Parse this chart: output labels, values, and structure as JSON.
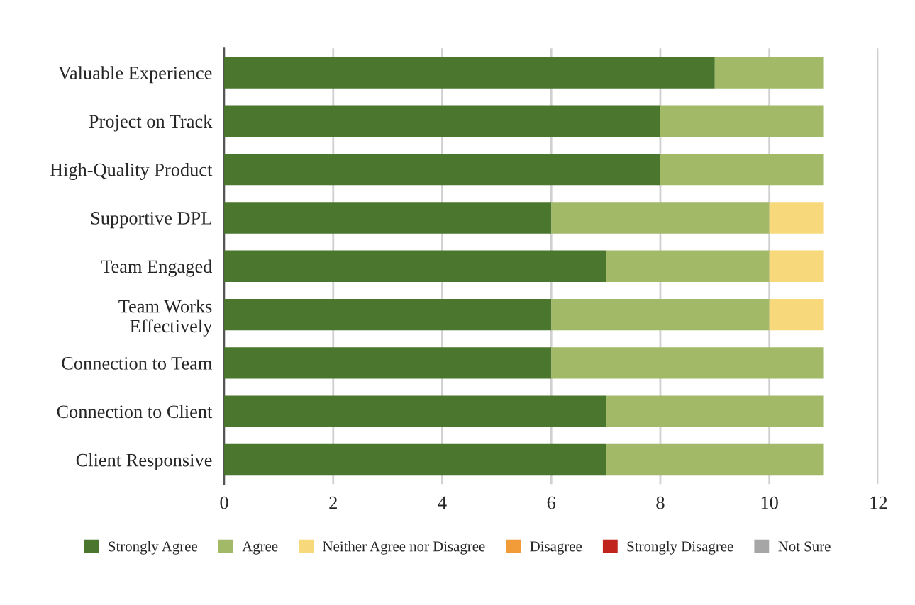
{
  "chart_data": {
    "type": "bar",
    "orientation": "horizontal",
    "stacked": true,
    "categories": [
      "Valuable Experience",
      "Project on Track",
      "High-Quality Product",
      "Supportive DPL",
      "Team Engaged",
      "Team Works\nEffectively",
      "Connection to Team",
      "Connection to Client",
      "Client Responsive"
    ],
    "series": [
      {
        "name": "Strongly Agree",
        "color": "#4a762d",
        "values": [
          9,
          8,
          8,
          6,
          7,
          6,
          6,
          7,
          7
        ]
      },
      {
        "name": "Agree",
        "color": "#a2b968",
        "values": [
          2,
          3,
          3,
          4,
          3,
          4,
          5,
          4,
          4
        ]
      },
      {
        "name": "Neither Agree nor Disagree",
        "color": "#f7d87a",
        "values": [
          0,
          0,
          0,
          1,
          1,
          1,
          0,
          0,
          0
        ]
      },
      {
        "name": "Disagree",
        "color": "#f19c38",
        "values": [
          0,
          0,
          0,
          0,
          0,
          0,
          0,
          0,
          0
        ]
      },
      {
        "name": "Strongly Disagree",
        "color": "#c0241c",
        "values": [
          0,
          0,
          0,
          0,
          0,
          0,
          0,
          0,
          0
        ]
      },
      {
        "name": "Not Sure",
        "color": "#a6a6a6",
        "values": [
          0,
          0,
          0,
          0,
          0,
          0,
          0,
          0,
          0
        ]
      }
    ],
    "xlim": [
      0,
      12
    ],
    "xticks": [
      0,
      2,
      4,
      6,
      8,
      10,
      12
    ],
    "grid": "x",
    "legend": "bottom"
  }
}
